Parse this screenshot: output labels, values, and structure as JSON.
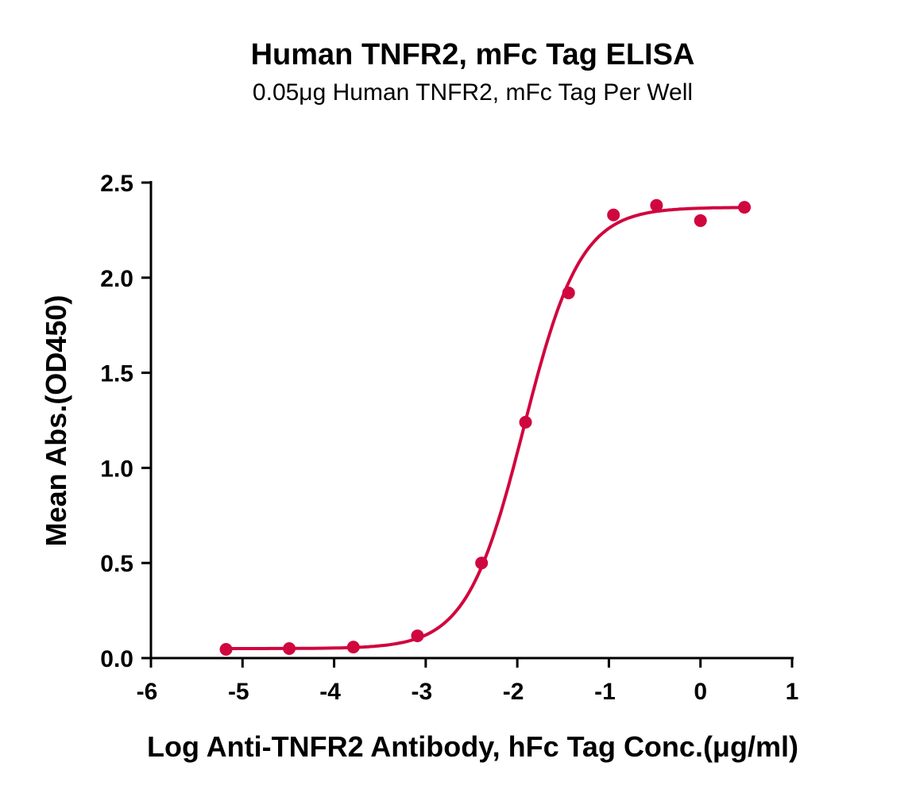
{
  "chart_data": {
    "type": "scatter",
    "title": "Human TNFR2, mFc Tag ELISA",
    "subtitle": "0.05μg Human TNFR2, mFc Tag Per Well",
    "xlabel": "Log Anti-TNFR2 Antibody, hFc Tag Conc.(μg/ml)",
    "ylabel": "Mean Abs.(OD450)",
    "xlim": [
      -6,
      1
    ],
    "ylim": [
      0,
      2.5
    ],
    "xticks": [
      "-6",
      "-5",
      "-4",
      "-3",
      "-2",
      "-1",
      "0",
      "1"
    ],
    "yticks": [
      "0.0",
      "0.5",
      "1.0",
      "1.5",
      "2.0",
      "2.5"
    ],
    "grid": false,
    "color": "#D0063F",
    "series": [
      {
        "name": "Anti-TNFR2 Antibody, hFc Tag",
        "x": [
          -5.18,
          -4.49,
          -3.79,
          -3.09,
          -2.39,
          -1.91,
          -1.44,
          -0.95,
          -0.48,
          0.0,
          0.48
        ],
        "y": [
          0.046,
          0.05,
          0.058,
          0.117,
          0.5,
          1.24,
          1.92,
          2.33,
          2.38,
          2.3,
          2.37
        ]
      }
    ],
    "fit": {
      "model": "4PL",
      "bottom": 0.05,
      "top": 2.37,
      "logEC50": -1.93,
      "hill": 1.4
    }
  }
}
